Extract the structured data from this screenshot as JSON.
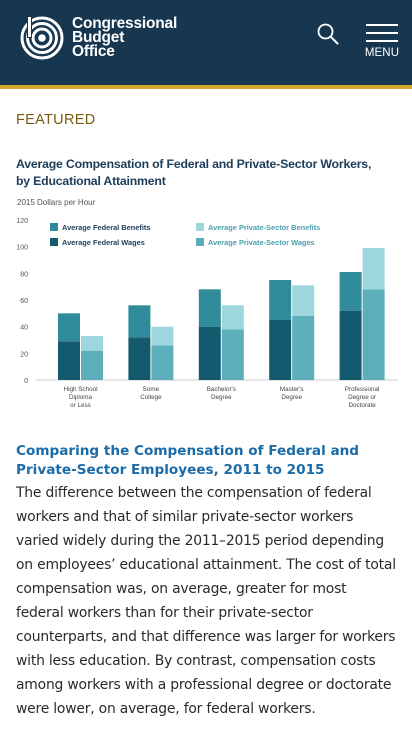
{
  "header": {
    "logo_lines": [
      "Congressional",
      "Budget",
      "Office"
    ],
    "menu_label": "MENU",
    "colors": {
      "background": "#17364f",
      "stripe": "#d1a72e"
    }
  },
  "featured_label": "FEATURED",
  "chart_data": {
    "type": "bar",
    "title": "Average Compensation of Federal and Private-Sector Workers, by Educational Attainment",
    "subtitle": "2015 Dollars per Hour",
    "categories": [
      "High School Diploma or Less",
      "Some College",
      "Bachelor's Degree",
      "Master's Degree",
      "Professional Degree or Doctorate"
    ],
    "category_lines": [
      [
        "High School",
        "Diploma",
        "or Less"
      ],
      [
        "Some",
        "College"
      ],
      [
        "Bachelor's",
        "Degree"
      ],
      [
        "Master's",
        "Degree"
      ],
      [
        "Professional",
        "Degree or",
        "Doctorate"
      ]
    ],
    "stacked": true,
    "groups": [
      {
        "name": "Federal",
        "series": [
          {
            "name": "Average Federal Wages",
            "values": [
              29,
              32,
              40,
              45,
              52
            ],
            "color": "#135a6f"
          },
          {
            "name": "Average Federal Benefits",
            "values": [
              21,
              24,
              28,
              30,
              29
            ],
            "color": "#2f8a99"
          }
        ]
      },
      {
        "name": "Private-Sector",
        "series": [
          {
            "name": "Average Private-Sector Wages",
            "values": [
              22,
              26,
              38,
              48,
              68
            ],
            "color": "#5daebb"
          },
          {
            "name": "Average Private-Sector Benefits",
            "values": [
              11,
              14,
              18,
              23,
              31
            ],
            "color": "#9ed6dd"
          }
        ]
      }
    ],
    "legend_order": [
      "Average Federal Benefits",
      "Average Private-Sector Benefits",
      "Average Federal Wages",
      "Average Private-Sector Wages"
    ],
    "y_ticks": [
      0,
      20,
      40,
      60,
      80,
      100,
      120
    ],
    "ylim": [
      0,
      120
    ],
    "grid": false,
    "legend_position": "top-left"
  },
  "article": {
    "title": "Comparing the Compensation of Federal and Private-Sector Employees, 2011 to 2015",
    "body": "The difference between the compensation of federal workers and that of similar private-sector workers varied widely during the 2011–2015 period depending on employees’ educational attainment. The cost of total compensation was, on average, greater for most federal workers than for their private-sector counterparts, and that difference was larger for workers with less education. By contrast, compensation costs among workers with a professional degree or doctorate were lower, on average, for federal workers."
  },
  "icons": [
    "cbo-logo-icon",
    "search-icon",
    "hamburger-menu-icon"
  ]
}
